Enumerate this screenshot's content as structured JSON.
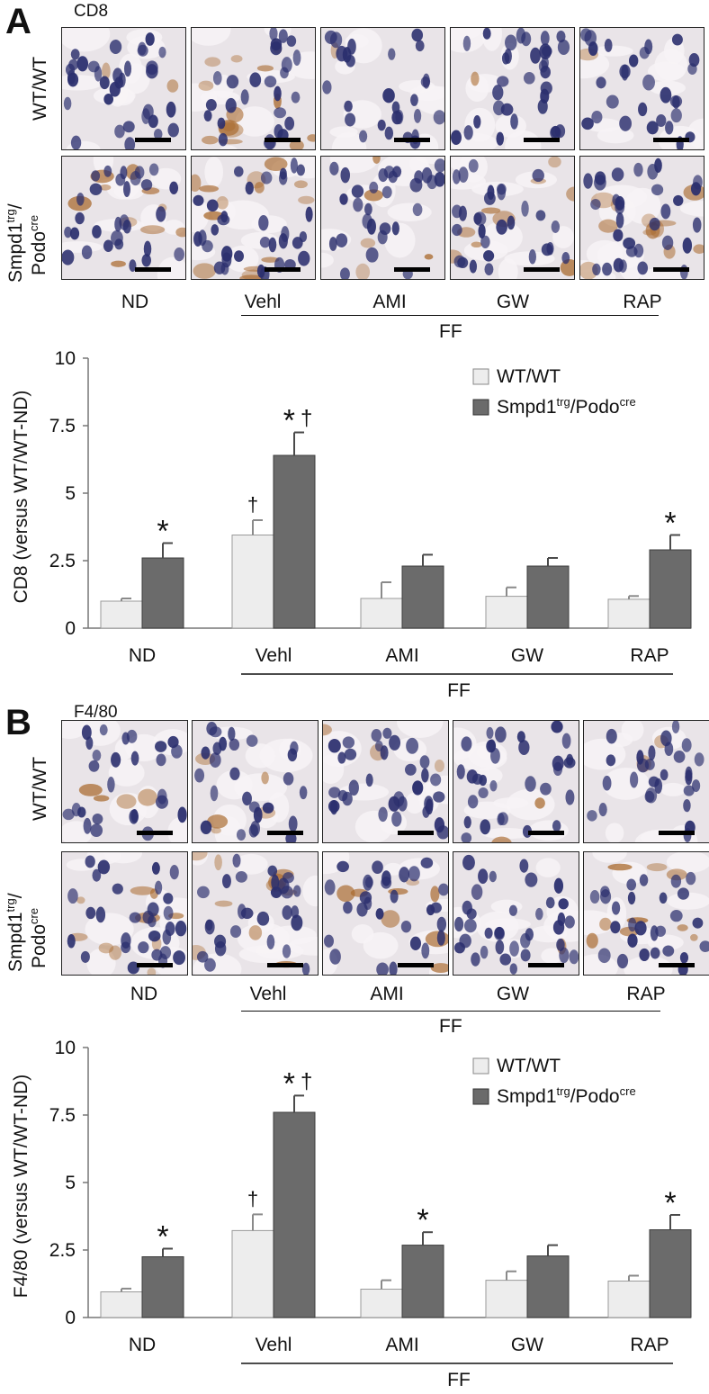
{
  "conditions": [
    "ND",
    "Vehl",
    "AMI",
    "GW",
    "RAP"
  ],
  "group_label": "FF",
  "panels": [
    {
      "letter": "A",
      "stain": "CD8",
      "row1_label": "WT/WT",
      "row2_label_a": "Smpd1",
      "row2_label_a_sup": "trg",
      "row2_label_b": "/",
      "row2_label_c": "Podo",
      "row2_label_c_sup": "cre"
    },
    {
      "letter": "B",
      "stain": "F4/80",
      "row1_label": "WT/WT",
      "row2_label_a": "Smpd1",
      "row2_label_a_sup": "trg",
      "row2_label_b": "/",
      "row2_label_c": "Podo",
      "row2_label_c_sup": "cre"
    }
  ],
  "colors": {
    "wt_bar": "#ededed",
    "tg_bar": "#6b6b6b",
    "stain_brown": "#a8672a",
    "nuclei": "#2b2f6e",
    "tissue": "#e9e4e8"
  },
  "chart_data": [
    {
      "type": "bar",
      "title": "",
      "ylabel": "CD8 (versus WT/WT-ND)",
      "xlabel": "",
      "categories": [
        "ND",
        "Vehl",
        "AMI",
        "GW",
        "RAP"
      ],
      "group_label": "FF",
      "ylim": [
        0,
        10
      ],
      "yticks": [
        "0",
        "2.5",
        "5",
        "7.5",
        "10"
      ],
      "ytick_values": [
        0,
        2.5,
        5,
        7.5,
        10
      ],
      "legend_position": "top-right",
      "series": [
        {
          "name": "WT/WT",
          "name_main": "WT/WT",
          "name_sup": "",
          "name_mid": "",
          "name_sup2": "",
          "values": [
            1.0,
            3.45,
            1.1,
            1.18,
            1.07
          ],
          "errors": [
            0.1,
            0.55,
            0.6,
            0.33,
            0.12
          ],
          "marks": [
            "",
            "†",
            "",
            "",
            ""
          ]
        },
        {
          "name": "Smpd1trg/Podocre",
          "name_main": "Smpd1",
          "name_sup": "trg",
          "name_mid": "/Podo",
          "name_sup2": "cre",
          "values": [
            2.6,
            6.4,
            2.3,
            2.3,
            2.9
          ],
          "errors": [
            0.55,
            0.85,
            0.42,
            0.3,
            0.55
          ],
          "marks": [
            "*",
            "* †",
            "",
            "",
            "*"
          ]
        }
      ]
    },
    {
      "type": "bar",
      "title": "",
      "ylabel": "F4/80 (versus WT/WT-ND)",
      "xlabel": "",
      "categories": [
        "ND",
        "Vehl",
        "AMI",
        "GW",
        "RAP"
      ],
      "group_label": "FF",
      "ylim": [
        0,
        10
      ],
      "yticks": [
        "0",
        "2.5",
        "5",
        "7.5",
        "10"
      ],
      "ytick_values": [
        0,
        2.5,
        5,
        7.5,
        10
      ],
      "legend_position": "top-right",
      "series": [
        {
          "name": "WT/WT",
          "name_main": "WT/WT",
          "name_sup": "",
          "name_mid": "",
          "name_sup2": "",
          "values": [
            0.95,
            3.22,
            1.05,
            1.38,
            1.35
          ],
          "errors": [
            0.12,
            0.6,
            0.33,
            0.33,
            0.2
          ],
          "marks": [
            "",
            "†",
            "",
            "",
            ""
          ]
        },
        {
          "name": "Smpd1trg/Podocre",
          "name_main": "Smpd1",
          "name_sup": "trg",
          "name_mid": "/Podo",
          "name_sup2": "cre",
          "values": [
            2.25,
            7.6,
            2.68,
            2.28,
            3.25
          ],
          "errors": [
            0.3,
            0.62,
            0.48,
            0.4,
            0.55
          ],
          "marks": [
            "*",
            "* †",
            "*",
            "",
            "*"
          ]
        }
      ]
    }
  ]
}
